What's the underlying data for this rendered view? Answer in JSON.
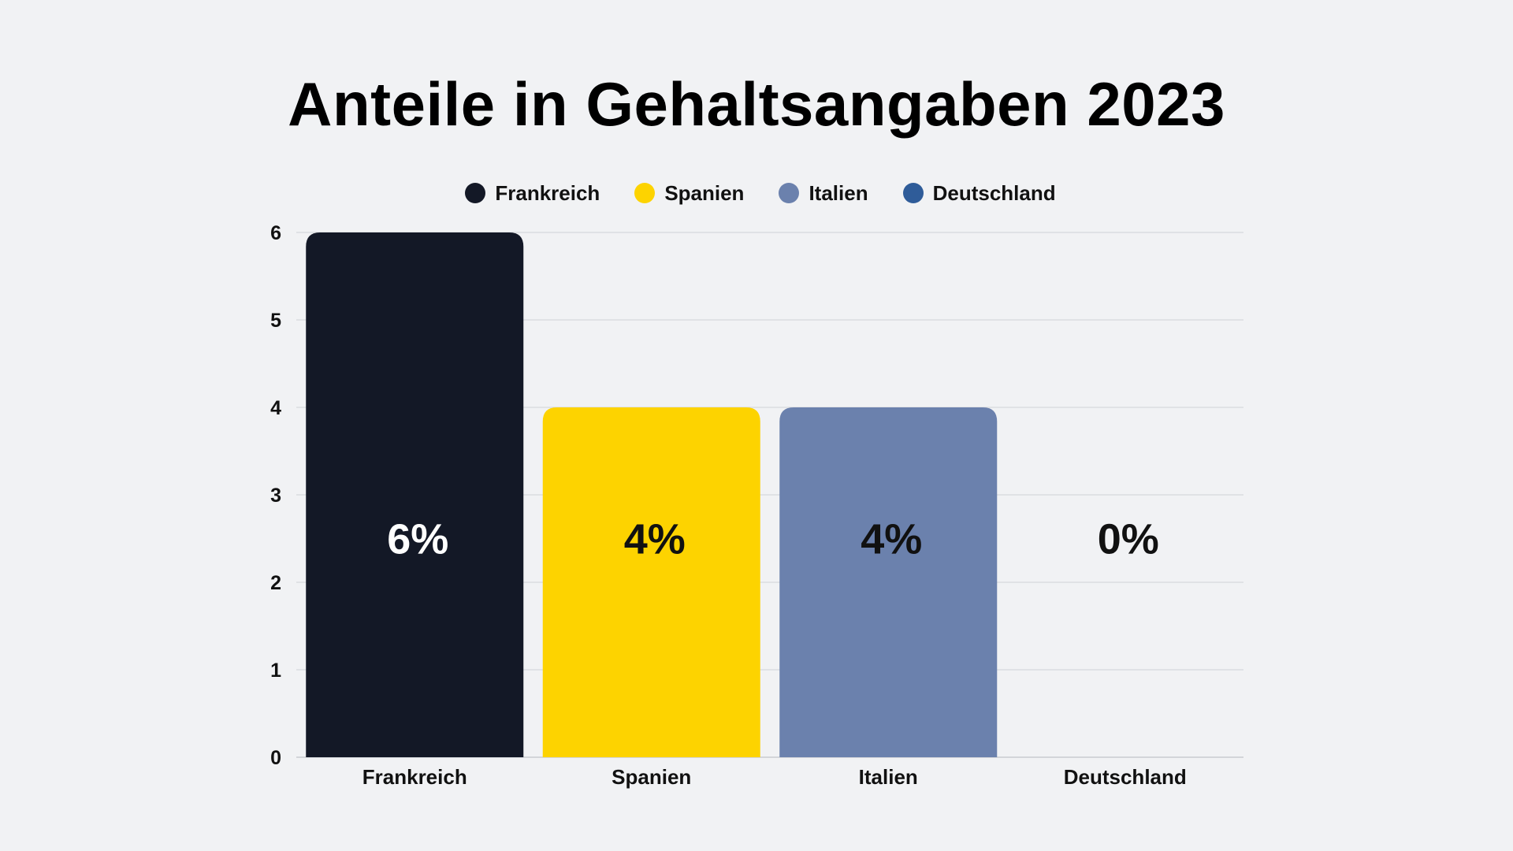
{
  "chart_data": {
    "type": "bar",
    "title": "Anteile in Gehaltsangaben 2023",
    "categories": [
      "Frankreich",
      "Spanien",
      "Italien",
      "Deutschland"
    ],
    "values": [
      6,
      4,
      4,
      0
    ],
    "data_labels": [
      "6%",
      "4%",
      "4%",
      "0%"
    ],
    "colors": [
      "#131826",
      "#FDD300",
      "#6B81AD",
      "#2F5C99"
    ],
    "label_colors": [
      "#FFFFFF",
      "#111111",
      "#111111",
      "#111111"
    ],
    "legend": [
      "Frankreich",
      "Spanien",
      "Italien",
      "Deutschland"
    ],
    "legend_position": "top",
    "ylim": [
      0,
      6
    ],
    "yticks": [
      "0",
      "1",
      "2",
      "3",
      "4",
      "5",
      "6"
    ],
    "grid": true,
    "xlabel": "",
    "ylabel": ""
  }
}
